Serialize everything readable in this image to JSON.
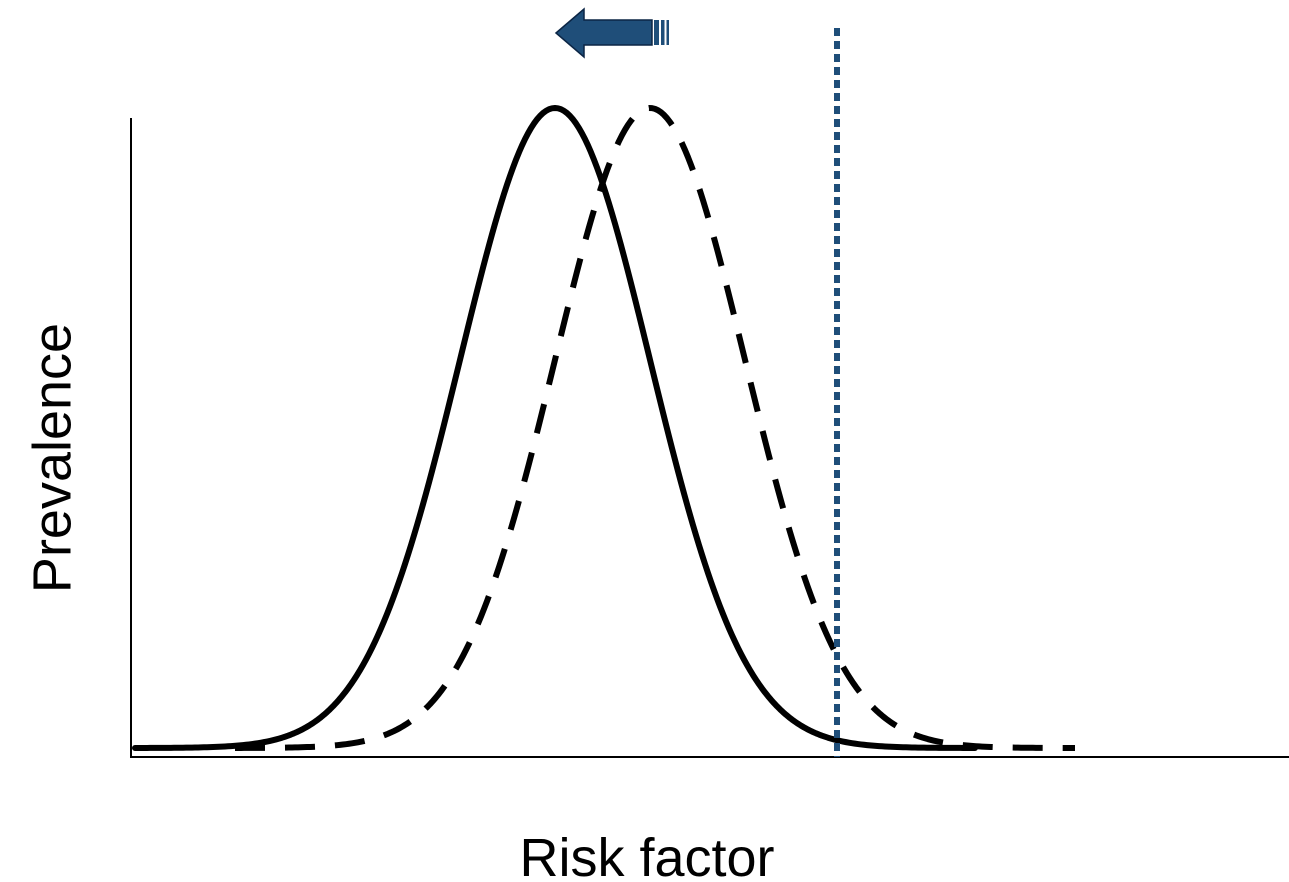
{
  "chart_data": {
    "type": "line",
    "xlabel": "Risk factor",
    "ylabel": "Prevalence",
    "series": [
      {
        "style": "solid",
        "mean": 555,
        "sd": 95
      },
      {
        "style": "dashed",
        "mean": 650,
        "sd": 95
      }
    ],
    "cutoff": 837,
    "shift_direction": "left",
    "colors": {
      "curves": "#000000",
      "cutoff_line": "#1F4E79",
      "arrow_fill": "#1F4E79",
      "arrow_stroke": "#0B2545"
    }
  }
}
